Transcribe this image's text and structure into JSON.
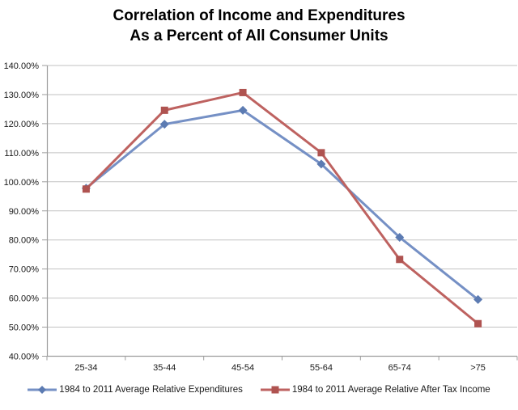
{
  "title": {
    "line1": "Correlation of Income and Expenditures",
    "line2": "As a Percent of All Consumer Units"
  },
  "chart_data": {
    "type": "line",
    "title": "Correlation of Income and Expenditures As a Percent of All Consumer Units",
    "categories": [
      "25-34",
      "35-44",
      "45-54",
      "55-64",
      "65-74",
      ">75"
    ],
    "series": [
      {
        "key": "expenditures",
        "name": "1984 to 2011 Average Relative Expenditures",
        "values": [
          97.8,
          119.8,
          124.6,
          106.1,
          80.9,
          59.5
        ],
        "line_color": "#7590C5",
        "marker": "diamond",
        "marker_color": "#5C7BB2"
      },
      {
        "key": "after-tax-income",
        "name": "1984 to 2011 Average Relative After Tax Income",
        "values": [
          97.5,
          124.6,
          130.7,
          110.0,
          73.3,
          51.2
        ],
        "line_color": "#BE6260",
        "marker": "square",
        "marker_color": "#AF5350"
      }
    ],
    "xlabel": "",
    "ylabel": "",
    "ylim": [
      40,
      140
    ],
    "ytick_step": 10,
    "y_tick_labels": [
      "140.00%",
      "130.00%",
      "120.00%",
      "110.00%",
      "100.00%",
      "90.00%",
      "80.00%",
      "70.00%",
      "60.00%",
      "50.00%",
      "40.00%"
    ],
    "grid": true,
    "legend_position": "bottom",
    "gridline_color": "#C2C2C2",
    "axis_color": "#9D9D9D",
    "tick_label_color": "#1A1A1A"
  }
}
